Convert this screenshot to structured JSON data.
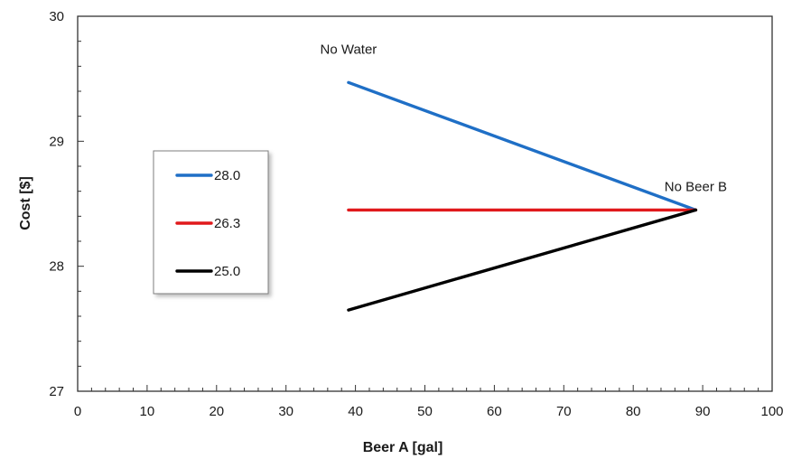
{
  "chart_data": {
    "type": "line",
    "title": "",
    "xlabel": "Beer A [gal]",
    "ylabel": "Cost [$]",
    "xlim": [
      0,
      100
    ],
    "ylim": [
      27,
      30
    ],
    "xticks": [
      "0",
      "10",
      "20",
      "30",
      "40",
      "50",
      "60",
      "70",
      "80",
      "90",
      "100"
    ],
    "yticks": [
      "27",
      "28",
      "29",
      "30"
    ],
    "minor_ticks_per_major_x": 5,
    "minor_ticks_per_major_y": 5,
    "grid": false,
    "legend_position": "left-middle",
    "series": [
      {
        "name": "28.0",
        "color": "#1f6fc6",
        "points": [
          [
            39,
            29.47
          ],
          [
            89,
            28.45
          ]
        ]
      },
      {
        "name": "26.3",
        "color": "#e0191c",
        "points": [
          [
            39,
            28.45
          ],
          [
            89,
            28.45
          ]
        ]
      },
      {
        "name": "25.0",
        "color": "#000000",
        "points": [
          [
            39,
            27.65
          ],
          [
            89,
            28.45
          ]
        ]
      }
    ],
    "annotations": [
      {
        "text": "No Water",
        "x": 39,
        "y": 29.7
      },
      {
        "text": "No Beer B",
        "x": 89,
        "y": 28.6
      }
    ]
  }
}
